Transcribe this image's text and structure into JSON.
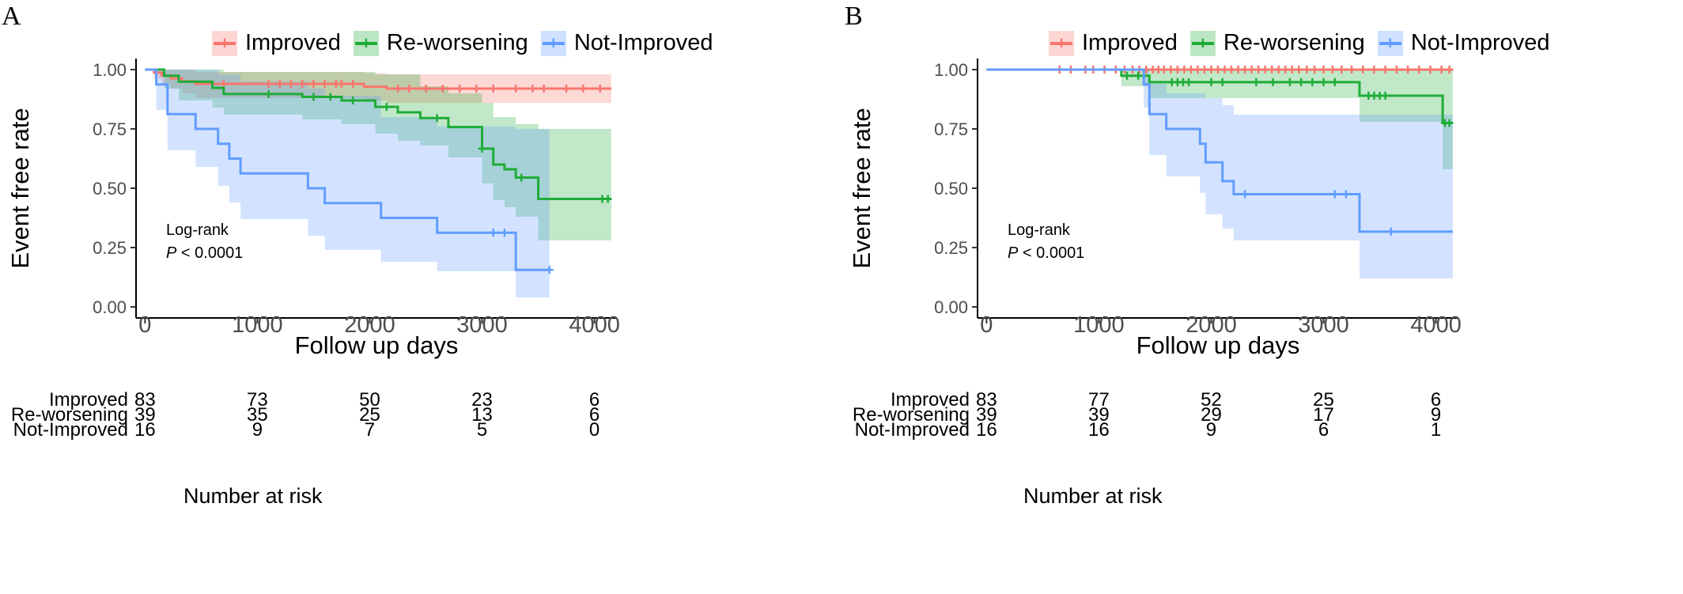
{
  "colors": {
    "improved": "#f8766d",
    "reworsening": "#1fac39",
    "notimproved": "#619cff"
  },
  "chart_data": [
    {
      "panel_label": "A",
      "type": "line",
      "subtype": "kaplan-meier",
      "xlabel": "Follow up days",
      "ylabel": "Event free rate",
      "xlim": [
        -80,
        4200
      ],
      "ylim": [
        0,
        1
      ],
      "xticks": [
        0,
        1000,
        2000,
        3000,
        4000
      ],
      "xtick_labels": [
        "0",
        "1000",
        "2000",
        "3000",
        "4000"
      ],
      "yticks": [
        0,
        0.25,
        0.5,
        0.75,
        1.0
      ],
      "ytick_labels": [
        "0.00",
        "0.25",
        "0.50",
        "0.75",
        "1.00"
      ],
      "legend_position": "top",
      "annotation": {
        "line1": "Log-rank",
        "p_label": "P",
        "p_value": " < 0.0001"
      },
      "series": [
        {
          "name": "Improved",
          "color_key": "improved",
          "steps": [
            [
              0,
              1.0
            ],
            [
              80,
              0.987
            ],
            [
              150,
              0.975
            ],
            [
              230,
              0.963
            ],
            [
              330,
              0.951
            ],
            [
              450,
              0.94
            ],
            [
              1950,
              0.928
            ],
            [
              2150,
              0.92
            ],
            [
              4150,
              0.92
            ]
          ],
          "ci_upper": [
            [
              0,
              1.0
            ],
            [
              300,
              1.0
            ],
            [
              450,
              0.99
            ],
            [
              1950,
              0.985
            ],
            [
              2150,
              0.98
            ],
            [
              4150,
              0.98
            ]
          ],
          "ci_lower": [
            [
              0,
              1.0
            ],
            [
              80,
              0.96
            ],
            [
              150,
              0.94
            ],
            [
              230,
              0.92
            ],
            [
              330,
              0.9
            ],
            [
              450,
              0.88
            ],
            [
              1950,
              0.87
            ],
            [
              2150,
              0.86
            ],
            [
              4150,
              0.86
            ]
          ],
          "censor_x": [
            700,
            1100,
            1200,
            1300,
            1400,
            1500,
            1600,
            1700,
            1750,
            1850,
            2250,
            2350,
            2500,
            2650,
            2800,
            2950,
            3100,
            3300,
            3450,
            3550,
            3750,
            3900,
            4050
          ]
        },
        {
          "name": "Re-worsening",
          "color_key": "reworsening",
          "steps": [
            [
              0,
              1.0
            ],
            [
              170,
              0.974
            ],
            [
              300,
              0.949
            ],
            [
              600,
              0.923
            ],
            [
              700,
              0.897
            ],
            [
              1400,
              0.885
            ],
            [
              1750,
              0.87
            ],
            [
              2050,
              0.843
            ],
            [
              2250,
              0.82
            ],
            [
              2450,
              0.796
            ],
            [
              2700,
              0.758
            ],
            [
              3000,
              0.667
            ],
            [
              3100,
              0.6
            ],
            [
              3200,
              0.58
            ],
            [
              3300,
              0.545
            ],
            [
              3500,
              0.455
            ],
            [
              4150,
              0.455
            ]
          ],
          "ci_upper": [
            [
              0,
              1.0
            ],
            [
              600,
              1.0
            ],
            [
              700,
              0.99
            ],
            [
              2050,
              0.98
            ],
            [
              2450,
              0.93
            ],
            [
              2700,
              0.9
            ],
            [
              3000,
              0.86
            ],
            [
              3100,
              0.8
            ],
            [
              3300,
              0.77
            ],
            [
              3500,
              0.75
            ],
            [
              4150,
              0.75
            ]
          ],
          "ci_lower": [
            [
              0,
              1.0
            ],
            [
              170,
              0.92
            ],
            [
              300,
              0.87
            ],
            [
              600,
              0.84
            ],
            [
              700,
              0.81
            ],
            [
              1400,
              0.79
            ],
            [
              1750,
              0.77
            ],
            [
              2050,
              0.73
            ],
            [
              2250,
              0.7
            ],
            [
              2450,
              0.68
            ],
            [
              2700,
              0.63
            ],
            [
              3000,
              0.52
            ],
            [
              3100,
              0.45
            ],
            [
              3200,
              0.42
            ],
            [
              3300,
              0.38
            ],
            [
              3500,
              0.28
            ],
            [
              4150,
              0.28
            ]
          ],
          "censor_x": [
            1100,
            1500,
            1650,
            1850,
            2150,
            2600,
            3000,
            3350,
            4070,
            4120
          ]
        },
        {
          "name": "Not-Improved",
          "color_key": "notimproved",
          "steps": [
            [
              0,
              1.0
            ],
            [
              100,
              0.9375
            ],
            [
              200,
              0.8125
            ],
            [
              450,
              0.75
            ],
            [
              650,
              0.6875
            ],
            [
              750,
              0.625
            ],
            [
              850,
              0.5625
            ],
            [
              1450,
              0.5
            ],
            [
              1600,
              0.4375
            ],
            [
              2100,
              0.375
            ],
            [
              2600,
              0.3125
            ],
            [
              3300,
              0.156
            ],
            [
              3600,
              0.156
            ]
          ],
          "ci_upper": [
            [
              0,
              1.0
            ],
            [
              450,
              1.0
            ],
            [
              650,
              0.98
            ],
            [
              850,
              0.95
            ],
            [
              1450,
              0.92
            ],
            [
              1600,
              0.89
            ],
            [
              2100,
              0.8
            ],
            [
              2600,
              0.76
            ],
            [
              3300,
              0.75
            ],
            [
              3600,
              0.75
            ]
          ],
          "ci_lower": [
            [
              0,
              1.0
            ],
            [
              100,
              0.83
            ],
            [
              200,
              0.66
            ],
            [
              450,
              0.59
            ],
            [
              650,
              0.51
            ],
            [
              750,
              0.44
            ],
            [
              850,
              0.37
            ],
            [
              1450,
              0.3
            ],
            [
              1600,
              0.24
            ],
            [
              2100,
              0.19
            ],
            [
              2600,
              0.15
            ],
            [
              3300,
              0.04
            ],
            [
              3600,
              0.04
            ]
          ],
          "censor_x": [
            3100,
            3200,
            3600
          ]
        }
      ],
      "risk_table": {
        "title": "Number at risk",
        "time_points": [
          0,
          1000,
          2000,
          3000,
          4000
        ],
        "rows": [
          {
            "name": "Improved",
            "values": [
              "83",
              "73",
              "50",
              "23",
              "6"
            ]
          },
          {
            "name": "Re-worsening",
            "values": [
              "39",
              "35",
              "25",
              "13",
              "6"
            ]
          },
          {
            "name": "Not-Improved",
            "values": [
              "16",
              "9",
              "7",
              "5",
              "0"
            ]
          }
        ]
      }
    },
    {
      "panel_label": "B",
      "type": "line",
      "subtype": "kaplan-meier",
      "xlabel": "Follow up days",
      "ylabel": "Event free rate",
      "xlim": [
        -80,
        4200
      ],
      "ylim": [
        0,
        1
      ],
      "xticks": [
        0,
        1000,
        2000,
        3000,
        4000
      ],
      "xtick_labels": [
        "0",
        "1000",
        "2000",
        "3000",
        "4000"
      ],
      "yticks": [
        0,
        0.25,
        0.5,
        0.75,
        1.0
      ],
      "ytick_labels": [
        "0.00",
        "0.25",
        "0.50",
        "0.75",
        "1.00"
      ],
      "legend_position": "top",
      "annotation": {
        "line1": "Log-rank",
        "p_label": "P",
        "p_value": " < 0.0001"
      },
      "series": [
        {
          "name": "Improved",
          "color_key": "improved",
          "steps": [
            [
              0,
              1.0
            ],
            [
              4150,
              1.0
            ]
          ],
          "ci_upper": [
            [
              0,
              1.0
            ],
            [
              4150,
              1.0
            ]
          ],
          "ci_lower": [
            [
              0,
              1.0
            ],
            [
              4150,
              1.0
            ]
          ],
          "censor_x": [
            650,
            750,
            880,
            950,
            1050,
            1150,
            1230,
            1300,
            1360,
            1420,
            1480,
            1530,
            1580,
            1640,
            1700,
            1760,
            1820,
            1880,
            1940,
            2000,
            2060,
            2120,
            2180,
            2240,
            2300,
            2360,
            2420,
            2480,
            2540,
            2600,
            2660,
            2720,
            2780,
            2850,
            2920,
            3000,
            3080,
            3160,
            3250,
            3350,
            3450,
            3550,
            3650,
            3750,
            3850,
            3950,
            4050,
            4120
          ]
        },
        {
          "name": "Re-worsening",
          "color_key": "reworsening",
          "steps": [
            [
              0,
              1.0
            ],
            [
              1200,
              0.974
            ],
            [
              1450,
              0.947
            ],
            [
              3320,
              0.89
            ],
            [
              4060,
              0.775
            ],
            [
              4150,
              0.775
            ]
          ],
          "ci_upper": [
            [
              0,
              1.0
            ],
            [
              1200,
              1.0
            ],
            [
              4060,
              1.0
            ],
            [
              4150,
              1.0
            ]
          ],
          "ci_lower": [
            [
              0,
              1.0
            ],
            [
              1200,
              0.93
            ],
            [
              1450,
              0.88
            ],
            [
              3320,
              0.78
            ],
            [
              4060,
              0.58
            ],
            [
              4150,
              0.58
            ]
          ],
          "censor_x": [
            1250,
            1350,
            1650,
            1700,
            1750,
            1800,
            2000,
            2100,
            2400,
            2550,
            2700,
            2800,
            2900,
            3000,
            3100,
            3400,
            3450,
            3500,
            3550,
            4080,
            4120
          ]
        },
        {
          "name": "Not-Improved",
          "color_key": "notimproved",
          "steps": [
            [
              0,
              1.0
            ],
            [
              1400,
              0.9375
            ],
            [
              1450,
              0.8125
            ],
            [
              1600,
              0.75
            ],
            [
              1900,
              0.6875
            ],
            [
              1950,
              0.609
            ],
            [
              2100,
              0.53
            ],
            [
              2200,
              0.475
            ],
            [
              3320,
              0.317
            ],
            [
              4150,
              0.317
            ]
          ],
          "ci_upper": [
            [
              0,
              1.0
            ],
            [
              1400,
              1.0
            ],
            [
              1450,
              0.94
            ],
            [
              1600,
              0.9
            ],
            [
              1950,
              0.88
            ],
            [
              2100,
              0.85
            ],
            [
              2200,
              0.81
            ],
            [
              3320,
              0.81
            ],
            [
              4150,
              0.83
            ]
          ],
          "ci_lower": [
            [
              0,
              1.0
            ],
            [
              1400,
              0.84
            ],
            [
              1450,
              0.64
            ],
            [
              1600,
              0.55
            ],
            [
              1900,
              0.48
            ],
            [
              1950,
              0.39
            ],
            [
              2100,
              0.33
            ],
            [
              2200,
              0.28
            ],
            [
              3320,
              0.12
            ],
            [
              4150,
              0.12
            ]
          ],
          "censor_x": [
            2300,
            3100,
            3200,
            3600
          ]
        }
      ],
      "risk_table": {
        "title": "Number at risk",
        "time_points": [
          0,
          1000,
          2000,
          3000,
          4000
        ],
        "rows": [
          {
            "name": "Improved",
            "values": [
              "83",
              "77",
              "52",
              "25",
              "6"
            ]
          },
          {
            "name": "Re-worsening",
            "values": [
              "39",
              "39",
              "29",
              "17",
              "9"
            ]
          },
          {
            "name": "Not-Improved",
            "values": [
              "16",
              "16",
              "9",
              "6",
              "1"
            ]
          }
        ]
      }
    }
  ]
}
